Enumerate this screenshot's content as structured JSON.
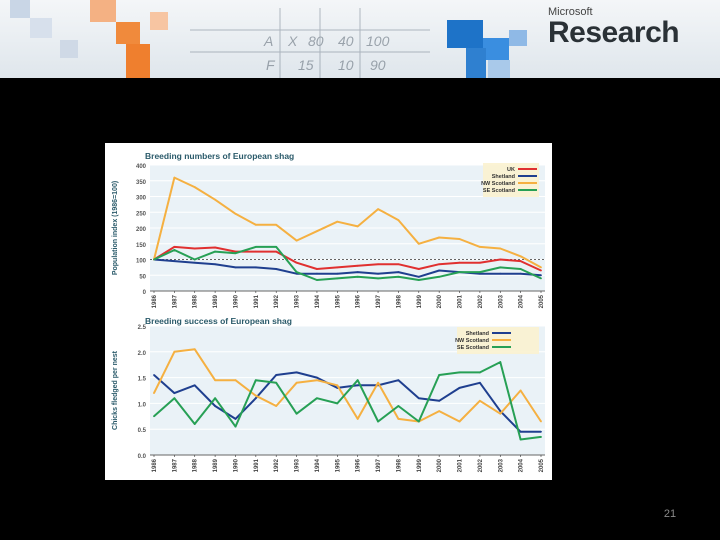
{
  "header": {
    "brand_small": "Microsoft",
    "brand_big": "Research",
    "doodle_text": [
      "A",
      "X",
      "80",
      "40",
      "100",
      "F",
      "15",
      "10",
      "90"
    ]
  },
  "slide_number": "21",
  "chart_data": [
    {
      "type": "line",
      "title": "Breeding numbers of European shag",
      "xlabel": "",
      "ylabel": "Population index (1986=100)",
      "ylim": [
        0,
        400
      ],
      "yticks": [
        0,
        50,
        100,
        150,
        200,
        250,
        300,
        350,
        400
      ],
      "reference_line": 100,
      "legend_position": "top-right",
      "x": [
        "1986",
        "1987",
        "1988",
        "1989",
        "1990",
        "1991",
        "1992",
        "1993",
        "1994",
        "1995",
        "1996",
        "1997",
        "1998",
        "1999",
        "2000",
        "2001",
        "2002",
        "2003",
        "2004",
        "2005"
      ],
      "series": [
        {
          "name": "UK",
          "color": "#e03030",
          "values": [
            100,
            140,
            135,
            138,
            125,
            125,
            125,
            90,
            70,
            75,
            80,
            85,
            85,
            70,
            85,
            90,
            90,
            100,
            95,
            65
          ]
        },
        {
          "name": "Shetland",
          "color": "#1f3f8f",
          "values": [
            100,
            95,
            90,
            85,
            75,
            75,
            70,
            55,
            55,
            55,
            60,
            55,
            60,
            45,
            65,
            60,
            55,
            55,
            55,
            50
          ]
        },
        {
          "name": "NW Scotland",
          "color": "#f5b041",
          "values": [
            100,
            360,
            330,
            290,
            245,
            210,
            210,
            160,
            190,
            220,
            205,
            260,
            225,
            150,
            170,
            165,
            140,
            135,
            110,
            75
          ]
        },
        {
          "name": "SE Scotland",
          "color": "#27a055",
          "values": [
            100,
            130,
            100,
            125,
            120,
            140,
            140,
            60,
            35,
            40,
            45,
            40,
            45,
            35,
            45,
            60,
            60,
            75,
            70,
            40
          ]
        }
      ]
    },
    {
      "type": "line",
      "title": "Breeding success of European shag",
      "xlabel": "",
      "ylabel": "Chicks fledged per nest",
      "ylim": [
        0,
        2.5
      ],
      "yticks": [
        0,
        0.5,
        1.0,
        1.5,
        2.0,
        2.5
      ],
      "legend_position": "top-right",
      "x": [
        "1986",
        "1987",
        "1988",
        "1989",
        "1990",
        "1991",
        "1992",
        "1993",
        "1994",
        "1995",
        "1996",
        "1997",
        "1998",
        "1999",
        "2000",
        "2001",
        "2002",
        "2003",
        "2004",
        "2005"
      ],
      "series": [
        {
          "name": "Shetland",
          "color": "#1f3f8f",
          "values": [
            1.55,
            1.2,
            1.35,
            0.95,
            0.7,
            1.1,
            1.55,
            1.6,
            1.5,
            1.3,
            1.35,
            1.35,
            1.45,
            1.1,
            1.05,
            1.3,
            1.4,
            0.85,
            0.45,
            0.45
          ]
        },
        {
          "name": "NW Scotland",
          "color": "#f5b041",
          "values": [
            1.2,
            2.0,
            2.05,
            1.45,
            1.45,
            1.15,
            0.95,
            1.4,
            1.45,
            1.35,
            0.7,
            1.4,
            0.7,
            0.65,
            0.85,
            0.65,
            1.05,
            0.8,
            1.25,
            0.65
          ]
        },
        {
          "name": "SE Scotland",
          "color": "#27a055",
          "values": [
            0.75,
            1.1,
            0.6,
            1.1,
            0.55,
            1.45,
            1.4,
            0.8,
            1.1,
            1.0,
            1.45,
            0.65,
            0.95,
            0.65,
            1.55,
            1.6,
            1.6,
            1.8,
            0.3,
            0.35
          ]
        }
      ]
    }
  ]
}
